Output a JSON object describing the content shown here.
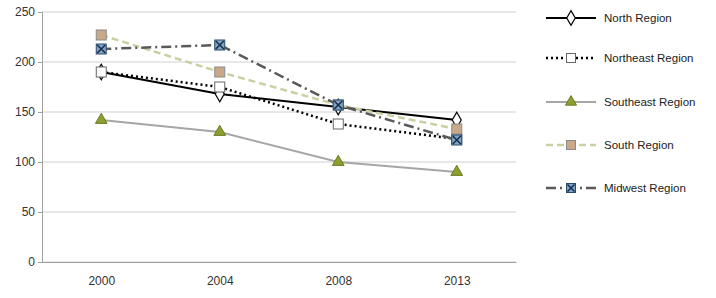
{
  "chart_data": {
    "type": "line",
    "categories": [
      "2000",
      "2004",
      "2008",
      "2013"
    ],
    "series": [
      {
        "name": "North Region",
        "color": "#000000",
        "marker": "diamond",
        "line_style": "solid",
        "values": [
          190,
          168,
          155,
          142
        ]
      },
      {
        "name": "Northeast Region",
        "color": "#000000",
        "marker": "square",
        "line_style": "dotted",
        "values": [
          190,
          175,
          138,
          123
        ]
      },
      {
        "name": "Southeast Region",
        "color": "#a6a6a6",
        "marker": "triangle",
        "line_style": "solid",
        "values": [
          142,
          130,
          100,
          90
        ]
      },
      {
        "name": "South Region",
        "color": "#c9d1a3",
        "marker": "square",
        "line_style": "dashed",
        "values": [
          227,
          190,
          157,
          133
        ]
      },
      {
        "name": "Midwest Region",
        "color": "#595959",
        "marker": "cross",
        "line_style": "dashdot",
        "values": [
          213,
          217,
          157,
          122
        ]
      }
    ],
    "ylim": [
      0,
      250
    ],
    "yticks": [
      0,
      50,
      100,
      150,
      200,
      250
    ],
    "grid": true,
    "legend": "right"
  }
}
